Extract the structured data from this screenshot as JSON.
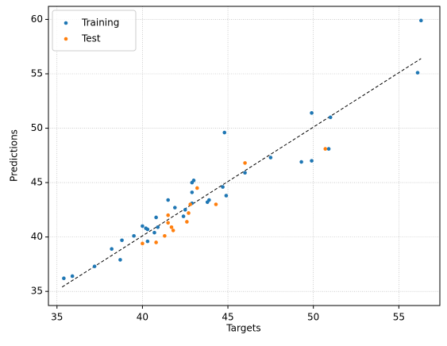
{
  "chart_data": {
    "type": "scatter",
    "x_label": "Targets",
    "y_label": "Predictions",
    "xlim": [
      34.5,
      57.4
    ],
    "ylim": [
      33.7,
      61.2
    ],
    "xticks": [
      35,
      40,
      45,
      50,
      55
    ],
    "yticks": [
      35,
      40,
      45,
      50,
      55,
      60
    ],
    "grid": true,
    "legend": "upper left",
    "reference_line": {
      "x": [
        35.3,
        56.3
      ],
      "y": [
        35.4,
        56.4
      ],
      "color": "#000000"
    },
    "series": [
      {
        "name": "Training",
        "color": "#1f77b4",
        "x": [
          35.4,
          35.9,
          37.2,
          38.2,
          38.7,
          38.8,
          39.5,
          40.0,
          40.2,
          40.3,
          40.3,
          40.8,
          40.9,
          40.7,
          41.5,
          41.9,
          42.4,
          42.5,
          42.9,
          43.0,
          42.9,
          42.9,
          43.8,
          43.9,
          44.7,
          44.8,
          44.9,
          46.0,
          47.5,
          49.3,
          49.9,
          49.9,
          50.9,
          51.0,
          56.1,
          56.3
        ],
        "values": [
          36.2,
          36.4,
          37.3,
          38.9,
          37.9,
          39.7,
          40.1,
          41.0,
          40.8,
          39.6,
          40.7,
          41.8,
          40.9,
          40.4,
          43.4,
          42.7,
          41.9,
          42.5,
          45.0,
          45.2,
          44.1,
          43.1,
          43.2,
          43.4,
          44.6,
          49.6,
          43.8,
          45.9,
          47.3,
          46.9,
          47.0,
          51.4,
          48.1,
          51.0,
          55.1,
          59.9
        ]
      },
      {
        "name": "Test",
        "color": "#ff7f0e",
        "x": [
          40.0,
          40.8,
          41.3,
          41.5,
          41.5,
          41.7,
          41.8,
          42.6,
          42.7,
          42.8,
          43.2,
          44.3,
          46.0,
          50.7
        ],
        "values": [
          39.4,
          39.5,
          40.1,
          42.0,
          41.3,
          40.9,
          40.6,
          41.4,
          42.2,
          43.0,
          44.5,
          43.0,
          46.8,
          48.1
        ]
      }
    ]
  }
}
